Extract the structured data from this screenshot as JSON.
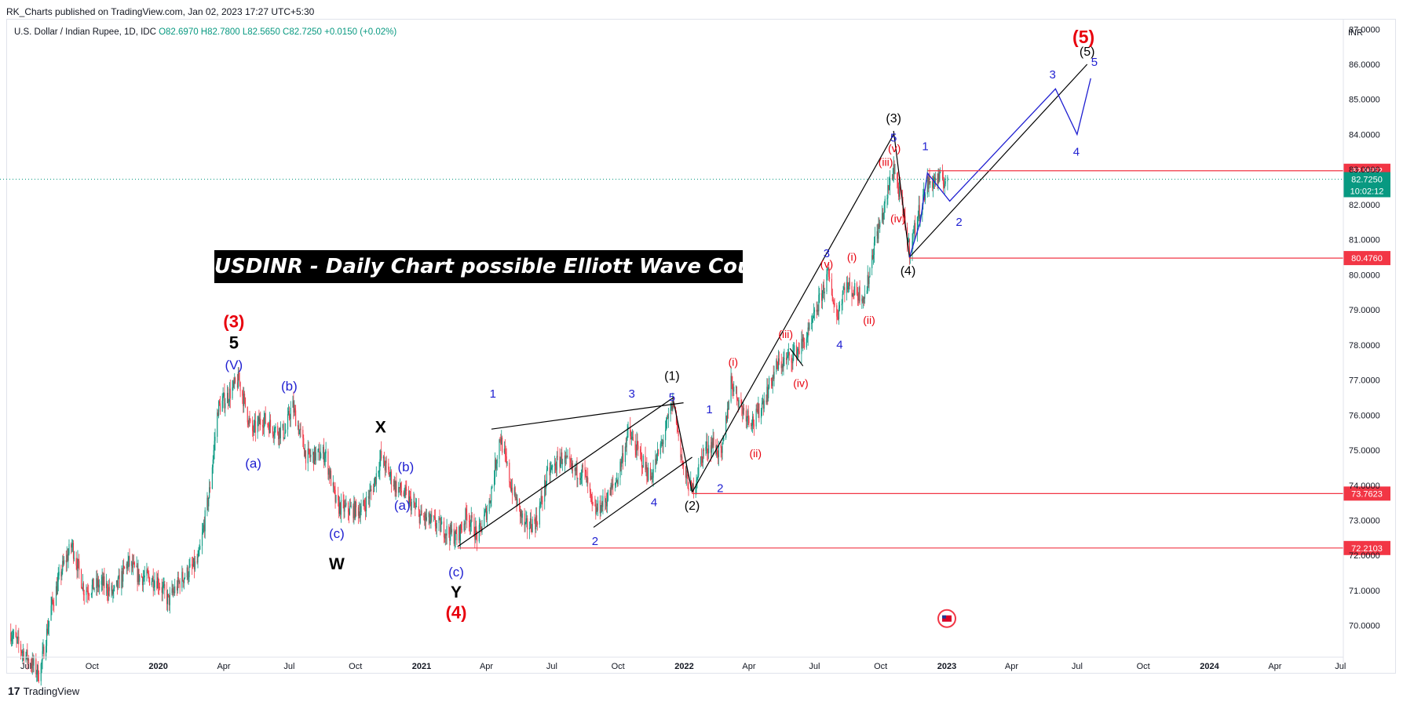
{
  "header": {
    "publisher": "RK_Charts published on TradingView.com, Jan 02, 2023 17:27 UTC+5:30",
    "symbol": "U.S. Dollar / Indian Rupee, 1D, IDC",
    "ohlc": "O82.6970  H82.7800  L82.5650  C82.7250  +0.0150 (+0.02%)"
  },
  "banner": "USDINR - Daily Chart possible Elliott Wave Counts",
  "footer": {
    "logo": "17",
    "brand": "TradingView"
  },
  "colors": {
    "up": "#089981",
    "down": "#f23645",
    "wave_blue": "#1f1fd1",
    "wave_red": "#e8000d",
    "wave_black": "#000000",
    "level": "#f23645",
    "price_tag": "#089981"
  },
  "chart_data": {
    "type": "candlestick",
    "currency": "INR",
    "y_ticks": [
      70,
      71,
      72,
      73,
      74,
      75,
      76,
      77,
      78,
      79,
      80,
      81,
      82,
      83,
      84,
      85,
      86,
      87
    ],
    "y_tick_labels": [
      "70.0000",
      "71.0000",
      "72.0000",
      "73.0000",
      "74.0000",
      "75.0000",
      "76.0000",
      "77.0000",
      "78.0000",
      "79.0000",
      "80.0000",
      "81.0000",
      "82.0000",
      "83.0000",
      "84.0000",
      "85.0000",
      "86.0000",
      "87.0000"
    ],
    "x_ticks": [
      {
        "t": "2019-07-01",
        "label": "Jul",
        "bold": false
      },
      {
        "t": "2019-10-01",
        "label": "Oct",
        "bold": false
      },
      {
        "t": "2020-01-01",
        "label": "2020",
        "bold": true
      },
      {
        "t": "2020-04-01",
        "label": "Apr",
        "bold": false
      },
      {
        "t": "2020-07-01",
        "label": "Jul",
        "bold": false
      },
      {
        "t": "2020-10-01",
        "label": "Oct",
        "bold": false
      },
      {
        "t": "2021-01-01",
        "label": "2021",
        "bold": true
      },
      {
        "t": "2021-04-01",
        "label": "Apr",
        "bold": false
      },
      {
        "t": "2021-07-01",
        "label": "Jul",
        "bold": false
      },
      {
        "t": "2021-10-01",
        "label": "Oct",
        "bold": false
      },
      {
        "t": "2022-01-01",
        "label": "2022",
        "bold": true
      },
      {
        "t": "2022-04-01",
        "label": "Apr",
        "bold": false
      },
      {
        "t": "2022-07-01",
        "label": "Jul",
        "bold": false
      },
      {
        "t": "2022-10-01",
        "label": "Oct",
        "bold": false
      },
      {
        "t": "2023-01-01",
        "label": "2023",
        "bold": true
      },
      {
        "t": "2023-04-01",
        "label": "Apr",
        "bold": false
      },
      {
        "t": "2023-07-01",
        "label": "Jul",
        "bold": false
      },
      {
        "t": "2023-10-01",
        "label": "Oct",
        "bold": false
      },
      {
        "t": "2024-01-01",
        "label": "2024",
        "bold": true
      },
      {
        "t": "2024-04-01",
        "label": "Apr",
        "bold": false
      },
      {
        "t": "2024-07-01",
        "label": "Jul",
        "bold": false
      }
    ],
    "price_path": [
      [
        "2019-06-10",
        69.8
      ],
      [
        "2019-06-25",
        69.3
      ],
      [
        "2019-07-20",
        68.6
      ],
      [
        "2019-08-05",
        70.5
      ],
      [
        "2019-08-20",
        71.6
      ],
      [
        "2019-09-03",
        72.3
      ],
      [
        "2019-09-20",
        71.0
      ],
      [
        "2019-10-15",
        71.2
      ],
      [
        "2019-10-31",
        70.9
      ],
      [
        "2019-11-20",
        71.8
      ],
      [
        "2019-12-05",
        71.4
      ],
      [
        "2019-12-31",
        71.3
      ],
      [
        "2020-01-15",
        70.7
      ],
      [
        "2020-02-01",
        71.3
      ],
      [
        "2020-02-25",
        71.8
      ],
      [
        "2020-03-12",
        73.8
      ],
      [
        "2020-03-24",
        76.2
      ],
      [
        "2020-04-05",
        76.5
      ],
      [
        "2020-04-22",
        77.0
      ],
      [
        "2020-05-10",
        75.5
      ],
      [
        "2020-05-25",
        75.9
      ],
      [
        "2020-06-10",
        75.6
      ],
      [
        "2020-06-25",
        75.5
      ],
      [
        "2020-07-05",
        76.3
      ],
      [
        "2020-07-25",
        74.8
      ],
      [
        "2020-08-20",
        74.9
      ],
      [
        "2020-09-05",
        73.4
      ],
      [
        "2020-09-20",
        73.3
      ],
      [
        "2020-10-10",
        73.3
      ],
      [
        "2020-10-25",
        73.9
      ],
      [
        "2020-11-05",
        74.8
      ],
      [
        "2020-11-25",
        74.0
      ],
      [
        "2020-12-10",
        73.7
      ],
      [
        "2020-12-31",
        73.1
      ],
      [
        "2021-01-20",
        72.9
      ],
      [
        "2021-02-20",
        72.5
      ],
      [
        "2021-03-05",
        73.2
      ],
      [
        "2021-03-20",
        72.5
      ],
      [
        "2021-04-05",
        73.5
      ],
      [
        "2021-04-20",
        75.4
      ],
      [
        "2021-05-05",
        74.0
      ],
      [
        "2021-05-25",
        72.8
      ],
      [
        "2021-06-10",
        73.0
      ],
      [
        "2021-06-25",
        74.3
      ],
      [
        "2021-07-15",
        74.8
      ],
      [
        "2021-07-30",
        74.4
      ],
      [
        "2021-08-15",
        74.4
      ],
      [
        "2021-08-28",
        73.2
      ],
      [
        "2021-09-15",
        73.6
      ],
      [
        "2021-09-30",
        74.2
      ],
      [
        "2021-10-15",
        75.5
      ],
      [
        "2021-10-30",
        74.9
      ],
      [
        "2021-11-15",
        74.2
      ],
      [
        "2021-12-01",
        75.2
      ],
      [
        "2021-12-17",
        76.4
      ],
      [
        "2021-12-31",
        74.4
      ],
      [
        "2022-01-12",
        73.8
      ],
      [
        "2022-01-28",
        75.0
      ],
      [
        "2022-02-10",
        75.2
      ],
      [
        "2022-02-22",
        74.8
      ],
      [
        "2022-03-07",
        77.0
      ],
      [
        "2022-03-22",
        76.2
      ],
      [
        "2022-04-08",
        75.8
      ],
      [
        "2022-04-25",
        76.6
      ],
      [
        "2022-05-10",
        77.4
      ],
      [
        "2022-05-25",
        77.6
      ],
      [
        "2022-06-10",
        77.9
      ],
      [
        "2022-06-25",
        78.4
      ],
      [
        "2022-07-10",
        79.4
      ],
      [
        "2022-07-20",
        80.0
      ],
      [
        "2022-08-01",
        78.8
      ],
      [
        "2022-08-12",
        79.7
      ],
      [
        "2022-08-28",
        79.5
      ],
      [
        "2022-09-10",
        79.4
      ],
      [
        "2022-09-22",
        80.9
      ],
      [
        "2022-10-05",
        81.8
      ],
      [
        "2022-10-19",
        83.1
      ],
      [
        "2022-10-28",
        82.2
      ],
      [
        "2022-11-10",
        80.7
      ],
      [
        "2022-11-22",
        81.7
      ],
      [
        "2022-12-05",
        82.6
      ],
      [
        "2022-12-15",
        82.7
      ],
      [
        "2023-01-02",
        82.7
      ]
    ],
    "levels": [
      {
        "value": 82.9652,
        "label": "82.9652",
        "from": "2022-12-05"
      },
      {
        "value": 80.476,
        "label": "80.4760",
        "from": "2022-11-10"
      },
      {
        "value": 73.7623,
        "label": "73.7623",
        "from": "2022-01-12"
      },
      {
        "value": 72.2103,
        "label": "72.2103",
        "from": "2021-02-20"
      }
    ],
    "current_price": {
      "value": 82.725,
      "label": "82.7250",
      "countdown": "10:02:12"
    },
    "trendlines": [
      [
        [
          "2021-02-20",
          72.25
        ],
        [
          "2021-12-17",
          76.5
        ]
      ],
      [
        [
          "2021-04-08",
          75.6
        ],
        [
          "2021-12-31",
          76.35
        ]
      ],
      [
        [
          "2021-08-28",
          72.8
        ],
        [
          "2022-01-12",
          74.8
        ]
      ],
      [
        [
          "2021-12-17",
          76.4
        ],
        [
          "2022-01-12",
          73.8
        ]
      ],
      [
        [
          "2022-01-12",
          73.8
        ],
        [
          "2022-10-19",
          84.0
        ]
      ],
      [
        [
          "2022-10-19",
          84.1
        ],
        [
          "2022-11-10",
          80.5
        ]
      ],
      [
        [
          "2022-11-10",
          80.5
        ],
        [
          "2023-07-15",
          86.0
        ]
      ],
      [
        [
          "2022-05-28",
          77.9
        ],
        [
          "2022-06-15",
          77.4
        ]
      ]
    ],
    "projection": [
      [
        "2022-11-10",
        80.5
      ],
      [
        "2022-11-25",
        81.5
      ],
      [
        "2022-12-05",
        82.9
      ],
      [
        "2023-01-05",
        82.1
      ],
      [
        "2023-06-01",
        85.3
      ],
      [
        "2023-07-01",
        84.0
      ],
      [
        "2023-07-20",
        85.6
      ]
    ],
    "wave_labels": [
      {
        "text": "(3)",
        "t": "2020-04-15",
        "p": 78.5,
        "color": "red",
        "size": 22,
        "bold": true
      },
      {
        "text": "5",
        "t": "2020-04-15",
        "p": 77.9,
        "color": "black",
        "size": 22,
        "bold": true
      },
      {
        "text": "(V)",
        "t": "2020-04-15",
        "p": 77.3,
        "color": "blue",
        "size": 17
      },
      {
        "text": "(b)",
        "t": "2020-07-01",
        "p": 76.7,
        "color": "blue",
        "size": 17
      },
      {
        "text": "(a)",
        "t": "2020-05-12",
        "p": 74.5,
        "color": "blue",
        "size": 17
      },
      {
        "text": "(c)",
        "t": "2020-09-05",
        "p": 72.5,
        "color": "blue",
        "size": 17
      },
      {
        "text": "W",
        "t": "2020-09-05",
        "p": 71.6,
        "color": "black",
        "size": 21,
        "bold": true
      },
      {
        "text": "X",
        "t": "2020-11-05",
        "p": 75.5,
        "color": "black",
        "size": 21,
        "bold": true
      },
      {
        "text": "(b)",
        "t": "2020-12-10",
        "p": 74.4,
        "color": "blue",
        "size": 17
      },
      {
        "text": "(a)",
        "t": "2020-12-05",
        "p": 73.3,
        "color": "blue",
        "size": 17
      },
      {
        "text": "(c)",
        "t": "2021-02-18",
        "p": 71.4,
        "color": "blue",
        "size": 17
      },
      {
        "text": "Y",
        "t": "2021-02-18",
        "p": 70.8,
        "color": "black",
        "size": 21,
        "bold": true
      },
      {
        "text": "(4)",
        "t": "2021-02-18",
        "p": 70.2,
        "color": "red",
        "size": 22,
        "bold": true
      },
      {
        "text": "1",
        "t": "2021-04-10",
        "p": 76.5,
        "color": "blue",
        "size": 15
      },
      {
        "text": "2",
        "t": "2021-08-30",
        "p": 72.3,
        "color": "blue",
        "size": 15
      },
      {
        "text": "3",
        "t": "2021-10-20",
        "p": 76.5,
        "color": "blue",
        "size": 15
      },
      {
        "text": "4",
        "t": "2021-11-20",
        "p": 73.4,
        "color": "blue",
        "size": 15
      },
      {
        "text": "5",
        "t": "2021-12-15",
        "p": 76.4,
        "color": "blue",
        "size": 15
      },
      {
        "text": "(1)",
        "t": "2021-12-15",
        "p": 77.0,
        "color": "black",
        "size": 16
      },
      {
        "text": "(2)",
        "t": "2022-01-12",
        "p": 73.3,
        "color": "black",
        "size": 16
      },
      {
        "text": "2",
        "t": "2022-02-20",
        "p": 73.8,
        "color": "blue",
        "size": 15
      },
      {
        "text": "1",
        "t": "2022-02-05",
        "p": 76.05,
        "color": "blue",
        "size": 15
      },
      {
        "text": "(i)",
        "t": "2022-03-10",
        "p": 77.4,
        "color": "red",
        "size": 14
      },
      {
        "text": "(ii)",
        "t": "2022-04-10",
        "p": 74.8,
        "color": "red",
        "size": 14
      },
      {
        "text": "(iii)",
        "t": "2022-05-22",
        "p": 78.2,
        "color": "red",
        "size": 14
      },
      {
        "text": "(iv)",
        "t": "2022-06-12",
        "p": 76.8,
        "color": "red",
        "size": 14
      },
      {
        "text": "3",
        "t": "2022-07-18",
        "p": 80.5,
        "color": "blue",
        "size": 15
      },
      {
        "text": "(v)",
        "t": "2022-07-18",
        "p": 80.2,
        "color": "red",
        "size": 14
      },
      {
        "text": "4",
        "t": "2022-08-05",
        "p": 77.9,
        "color": "blue",
        "size": 15
      },
      {
        "text": "(i)",
        "t": "2022-08-22",
        "p": 80.4,
        "color": "red",
        "size": 14
      },
      {
        "text": "(ii)",
        "t": "2022-09-15",
        "p": 78.6,
        "color": "red",
        "size": 14
      },
      {
        "text": "(iii)",
        "t": "2022-10-08",
        "p": 83.1,
        "color": "red",
        "size": 14
      },
      {
        "text": "(v)",
        "t": "2022-10-20",
        "p": 83.5,
        "color": "red",
        "size": 14
      },
      {
        "text": "5",
        "t": "2022-10-19",
        "p": 83.8,
        "color": "blue",
        "size": 15
      },
      {
        "text": "(3)",
        "t": "2022-10-19",
        "p": 84.35,
        "color": "black",
        "size": 16
      },
      {
        "text": "(iv)",
        "t": "2022-10-25",
        "p": 81.5,
        "color": "red",
        "size": 14
      },
      {
        "text": "(4)",
        "t": "2022-11-08",
        "p": 80.0,
        "color": "black",
        "size": 16
      },
      {
        "text": "1",
        "t": "2022-12-02",
        "p": 83.55,
        "color": "blue",
        "size": 15
      },
      {
        "text": "2",
        "t": "2023-01-18",
        "p": 81.4,
        "color": "blue",
        "size": 15
      },
      {
        "text": "3",
        "t": "2023-05-28",
        "p": 85.6,
        "color": "blue",
        "size": 15
      },
      {
        "text": "4",
        "t": "2023-06-30",
        "p": 83.4,
        "color": "blue",
        "size": 15
      },
      {
        "text": "(5)",
        "t": "2023-07-15",
        "p": 86.25,
        "color": "black",
        "size": 16
      },
      {
        "text": "5",
        "t": "2023-07-25",
        "p": 85.95,
        "color": "blue",
        "size": 15
      },
      {
        "text": "(5)",
        "t": "2023-07-10",
        "p": 86.6,
        "color": "red",
        "size": 23,
        "bold": true
      }
    ]
  }
}
